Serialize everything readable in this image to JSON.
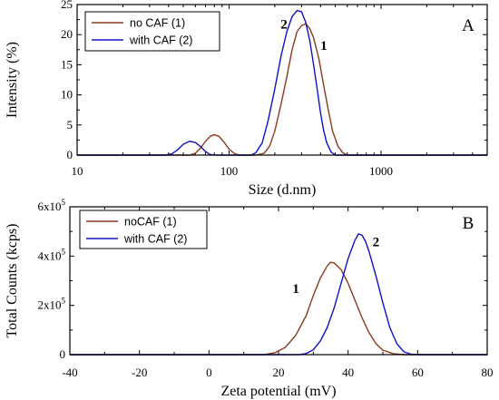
{
  "chart_data": [
    {
      "type": "line",
      "panel": "A",
      "xlabel": "Size (d.nm)",
      "ylabel": "Intensity (%)",
      "xscale": "log",
      "xlim": [
        10,
        5000
      ],
      "ylim": [
        0,
        25
      ],
      "xticks": [
        10,
        100,
        1000
      ],
      "xtick_labels": [
        "10",
        "100",
        "1000"
      ],
      "yticks": [
        0,
        5,
        10,
        15,
        20,
        25
      ],
      "ytick_labels": [
        "0",
        "5",
        "10",
        "15",
        "20",
        "25"
      ],
      "legend_position": "top-left",
      "series": [
        {
          "name": "no CAF (1)",
          "color": "#8B3A1A",
          "points": [
            [
              10,
              0
            ],
            [
              55,
              0
            ],
            [
              60,
              0.3
            ],
            [
              65,
              1.2
            ],
            [
              70,
              2.3
            ],
            [
              75,
              3.1
            ],
            [
              80,
              3.4
            ],
            [
              86,
              3.1
            ],
            [
              93,
              2.1
            ],
            [
              100,
              1.0
            ],
            [
              108,
              0.3
            ],
            [
              115,
              0
            ],
            [
              150,
              0
            ],
            [
              170,
              0.3
            ],
            [
              185,
              1.5
            ],
            [
              200,
              4.0
            ],
            [
              220,
              8.5
            ],
            [
              240,
              13.0
            ],
            [
              260,
              17.5
            ],
            [
              280,
              20.5
            ],
            [
              300,
              21.5
            ],
            [
              320,
              21.8
            ],
            [
              340,
              21.0
            ],
            [
              360,
              19.5
            ],
            [
              390,
              16.0
            ],
            [
              420,
              11.5
            ],
            [
              450,
              7.5
            ],
            [
              480,
              4.0
            ],
            [
              520,
              1.5
            ],
            [
              560,
              0.4
            ],
            [
              600,
              0
            ],
            [
              5000,
              0
            ]
          ]
        },
        {
          "name": "with CAF (2)",
          "color": "#1010C8",
          "points": [
            [
              10,
              0
            ],
            [
              38,
              0
            ],
            [
              42,
              0.2
            ],
            [
              46,
              0.9
            ],
            [
              50,
              1.8
            ],
            [
              55,
              2.3
            ],
            [
              60,
              2.1
            ],
            [
              65,
              1.4
            ],
            [
              70,
              0.6
            ],
            [
              75,
              0.1
            ],
            [
              80,
              0
            ],
            [
              140,
              0
            ],
            [
              150,
              0.4
            ],
            [
              165,
              2.0
            ],
            [
              180,
              5.5
            ],
            [
              200,
              11.0
            ],
            [
              220,
              16.5
            ],
            [
              240,
              20.5
            ],
            [
              260,
              23.0
            ],
            [
              280,
              24.0
            ],
            [
              300,
              23.8
            ],
            [
              320,
              22.0
            ],
            [
              340,
              19.0
            ],
            [
              360,
              15.0
            ],
            [
              380,
              11.0
            ],
            [
              400,
              7.0
            ],
            [
              420,
              4.0
            ],
            [
              440,
              2.0
            ],
            [
              470,
              0.5
            ],
            [
              500,
              0
            ],
            [
              5000,
              0
            ]
          ]
        }
      ],
      "annotations": [
        {
          "text": "2",
          "x": 230,
          "y": 21
        },
        {
          "text": "1",
          "x": 420,
          "y": 17.5
        }
      ]
    },
    {
      "type": "line",
      "panel": "B",
      "xlabel": "Zeta potential (mV)",
      "ylabel": "Total Counts (kcps)",
      "xlim": [
        -40,
        80
      ],
      "ylim": [
        0,
        600000
      ],
      "xticks": [
        -40,
        -20,
        0,
        20,
        40,
        60,
        80
      ],
      "xtick_labels": [
        "-40",
        "-20",
        "0",
        "20",
        "40",
        "60",
        "80"
      ],
      "yticks": [
        0,
        200000,
        400000,
        600000
      ],
      "ytick_labels": [
        "0",
        "2x10^5",
        "4x10^5",
        "6x10^5"
      ],
      "legend_position": "top-left",
      "series": [
        {
          "name": "noCAF (1)",
          "color": "#8B3A1A",
          "points": [
            [
              -40,
              0
            ],
            [
              16,
              0
            ],
            [
              19,
              8000
            ],
            [
              22,
              30000
            ],
            [
              25,
              80000
            ],
            [
              28,
              160000
            ],
            [
              30,
              240000
            ],
            [
              32,
              310000
            ],
            [
              34,
              360000
            ],
            [
              35,
              375000
            ],
            [
              36,
              372000
            ],
            [
              38,
              345000
            ],
            [
              40,
              290000
            ],
            [
              42,
              220000
            ],
            [
              44,
              150000
            ],
            [
              46,
              90000
            ],
            [
              48,
              45000
            ],
            [
              50,
              18000
            ],
            [
              53,
              4000
            ],
            [
              56,
              0
            ],
            [
              80,
              0
            ]
          ]
        },
        {
          "name": "with CAF (2)",
          "color": "#1010C8",
          "points": [
            [
              -40,
              0
            ],
            [
              26,
              0
            ],
            [
              28,
              5000
            ],
            [
              30,
              20000
            ],
            [
              32,
              55000
            ],
            [
              34,
              110000
            ],
            [
              36,
              190000
            ],
            [
              38,
              290000
            ],
            [
              40,
              390000
            ],
            [
              42,
              465000
            ],
            [
              43,
              490000
            ],
            [
              44,
              485000
            ],
            [
              45,
              460000
            ],
            [
              46,
              420000
            ],
            [
              48,
              320000
            ],
            [
              50,
              210000
            ],
            [
              52,
              110000
            ],
            [
              54,
              45000
            ],
            [
              56,
              12000
            ],
            [
              58,
              2000
            ],
            [
              60,
              0
            ],
            [
              80,
              0
            ]
          ]
        }
      ],
      "annotations": [
        {
          "text": "1",
          "x": 25,
          "y": 250000
        },
        {
          "text": "2",
          "x": 48,
          "y": 440000
        }
      ]
    }
  ]
}
